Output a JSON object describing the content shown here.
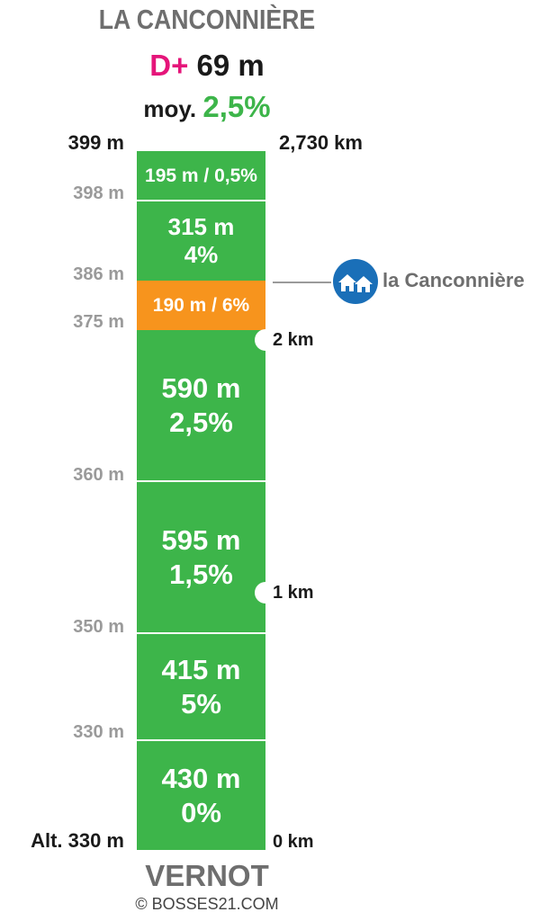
{
  "header": {
    "title": "LA CANCONNIÈRE",
    "dplus_label": "D+",
    "dplus_value": "69 m",
    "avg_label": "moy.",
    "avg_value": "2,5%"
  },
  "top_labels": {
    "altitude": "399 m",
    "distance": "2,730 km"
  },
  "segments": [
    {
      "line1": "195 m / 0,5%",
      "line2": "",
      "color": "#3db54a"
    },
    {
      "line1": "315 m",
      "line2": "4%",
      "color": "#3db54a"
    },
    {
      "line1": "190 m / 6%",
      "line2": "",
      "color": "#f7941d"
    },
    {
      "line1": "590 m",
      "line2": "2,5%",
      "color": "#3db54a"
    },
    {
      "line1": "595 m",
      "line2": "1,5%",
      "color": "#3db54a"
    },
    {
      "line1": "415 m",
      "line2": "5%",
      "color": "#3db54a"
    },
    {
      "line1": "430 m",
      "line2": "0%",
      "color": "#3db54a"
    }
  ],
  "altitude_labels": [
    "398 m",
    "386 m",
    "375 m",
    "360 m",
    "350 m",
    "330 m",
    "Alt. 330 m"
  ],
  "km_markers": [
    "2 km",
    "1 km",
    "0 km"
  ],
  "poi": {
    "label": "la Canconnière",
    "icon": "houses-icon",
    "color": "#1a6fb8"
  },
  "footer": {
    "start_name": "VERNOT",
    "copyright": "© BOSSES21.COM"
  }
}
